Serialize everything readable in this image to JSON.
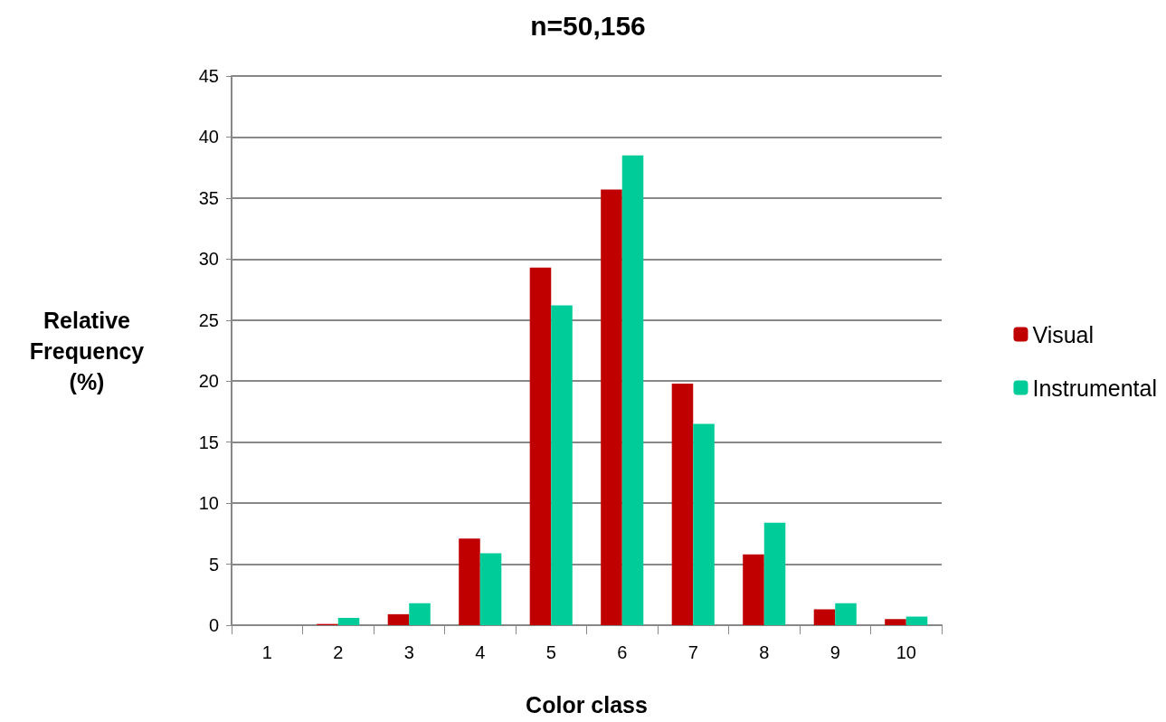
{
  "chart_data": {
    "type": "bar",
    "title": "n=50,156",
    "xlabel": "Color class",
    "ylabel": "Relative\nFrequency\n(%)",
    "categories": [
      "1",
      "2",
      "3",
      "4",
      "5",
      "6",
      "7",
      "8",
      "9",
      "10"
    ],
    "series": [
      {
        "name": "Visual",
        "color": "#c00000",
        "values": [
          0,
          0.1,
          0.9,
          7.1,
          29.3,
          35.7,
          19.8,
          5.8,
          1.3,
          0.5
        ]
      },
      {
        "name": "Instrumental",
        "color": "#00cc99",
        "values": [
          0,
          0.6,
          1.8,
          5.9,
          26.2,
          38.5,
          16.5,
          8.4,
          1.8,
          0.7
        ]
      }
    ],
    "ylim": [
      0,
      45
    ],
    "yticks": [
      0,
      5,
      10,
      15,
      20,
      25,
      30,
      35,
      40,
      45
    ],
    "grid": "y",
    "legend": "right"
  }
}
